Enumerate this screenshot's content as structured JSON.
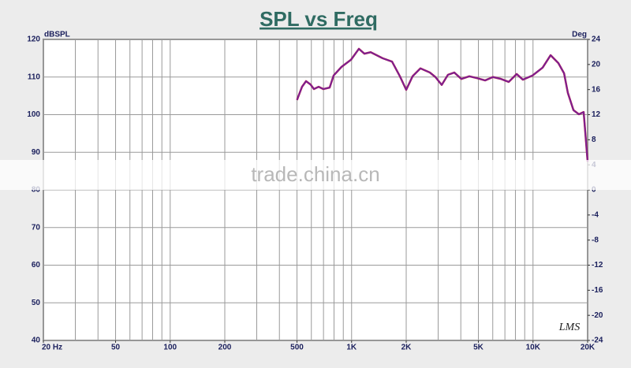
{
  "chart_data": {
    "type": "line",
    "title": "SPL vs Freq",
    "y_label": "dBSPL",
    "y2_label": "Deg",
    "x_scale": "log",
    "grid": true,
    "xlim": [
      20,
      20000
    ],
    "xticks": [
      {
        "value": 20,
        "label": "20 Hz"
      },
      50,
      100,
      200,
      500,
      {
        "value": 1000,
        "label": "1K"
      },
      {
        "value": 2000,
        "label": "2K"
      },
      {
        "value": 5000,
        "label": "5K"
      },
      {
        "value": 10000,
        "label": "10K"
      },
      {
        "value": 20000,
        "label": "20K"
      }
    ],
    "xgrid": [
      20,
      30,
      40,
      50,
      60,
      70,
      80,
      90,
      100,
      200,
      300,
      400,
      500,
      600,
      700,
      800,
      900,
      1000,
      2000,
      3000,
      4000,
      5000,
      6000,
      7000,
      8000,
      9000,
      10000,
      20000
    ],
    "ylim": [
      40,
      120
    ],
    "yticks": [
      40,
      50,
      60,
      70,
      80,
      90,
      100,
      110,
      120
    ],
    "y2lim": [
      -24,
      24
    ],
    "y2ticks": [
      -24,
      -20,
      -16,
      -12,
      -8,
      -4,
      0,
      4,
      8,
      12,
      16,
      20,
      24
    ],
    "x": [
      500,
      533,
      561,
      594,
      620,
      658,
      698,
      757,
      796,
      880,
      993,
      1097,
      1177,
      1274,
      1482,
      1671,
      1846,
      2000,
      2168,
      2395,
      2700,
      2897,
      3139,
      3398,
      3683,
      4027,
      4455,
      4920,
      5445,
      6012,
      6651,
      7345,
      8128,
      8790,
      9931,
      11300,
      12500,
      13800,
      14830,
      15560,
      16710,
      17910,
      19020,
      20000
    ],
    "series": [
      {
        "name": "SPL",
        "color": "#7b1f93",
        "values": [
          103.9,
          107.4,
          108.9,
          108,
          106.8,
          107.4,
          106.8,
          107.2,
          110.4,
          112.7,
          114.6,
          117.5,
          116.2,
          116.6,
          115,
          114.1,
          110.2,
          106.6,
          110.2,
          112.3,
          111.2,
          110,
          107.9,
          110.6,
          111.2,
          109.5,
          110.2,
          109.7,
          109.1,
          110,
          109.5,
          108.7,
          110.8,
          109.3,
          110.4,
          112.5,
          115.8,
          113.7,
          111,
          105.8,
          101.2,
          100.1,
          100.7,
          87.5
        ]
      }
    ],
    "watermark": "trade.china.cn",
    "logo": "LMS"
  }
}
